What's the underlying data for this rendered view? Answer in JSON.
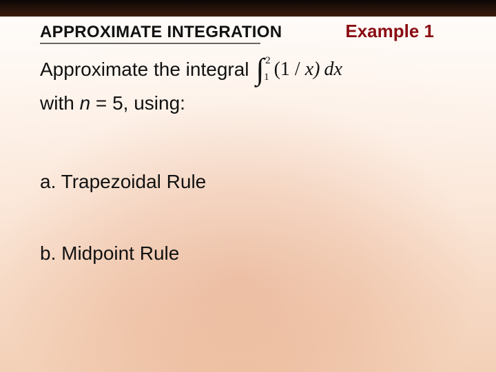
{
  "colors": {
    "topbar_gradient_from": "#0a0705",
    "topbar_gradient_to": "#3a1c0c",
    "bg_top": "#fffdfb",
    "bg_bottom": "#f3d0b7",
    "accent_radial": "#c85a28",
    "underline": "#6b6560",
    "example_color": "#8a0c12",
    "text": "#111111"
  },
  "header": {
    "section_title": "APPROXIMATE INTEGRATION",
    "example_label": "Example 1"
  },
  "content": {
    "prompt_line1_prefix": "Approximate the integral",
    "integral": {
      "lower_bound": "1",
      "upper_bound": "2",
      "integrand": "(1 / x)",
      "operator_prefix": "(1",
      "operator_slash": "/",
      "operator_var": "x)",
      "dx": "dx"
    },
    "prompt_line2_before_n": "with ",
    "n_symbol": "n",
    "prompt_line2_after_n": " = 5, using:",
    "option_a": "a. Trapezoidal Rule",
    "option_b": "b. Midpoint Rule"
  },
  "typography": {
    "title_fontsize_pt": 18,
    "example_fontsize_pt": 20,
    "body_fontsize_pt": 21,
    "integral_fontsize_pt": 33
  }
}
